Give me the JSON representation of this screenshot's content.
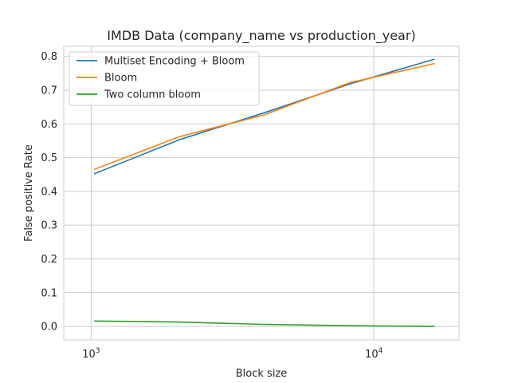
{
  "chart_data": {
    "type": "line",
    "title": "IMDB Data (company_name vs production_year)",
    "xlabel": "Block size",
    "ylabel": "False positive Rate",
    "xscale": "log",
    "xlim": [
      800,
      20000
    ],
    "ylim": [
      -0.04,
      0.83
    ],
    "x_ticks": [
      {
        "value": 1000,
        "base": "10",
        "exp": "3"
      },
      {
        "value": 10000,
        "base": "10",
        "exp": "4"
      }
    ],
    "y_ticks": [
      "0.0",
      "0.1",
      "0.2",
      "0.3",
      "0.4",
      "0.5",
      "0.6",
      "0.7",
      "0.8"
    ],
    "grid": true,
    "legend_position": "upper-left",
    "x": [
      1024,
      2048,
      4096,
      8192,
      16384
    ],
    "series": [
      {
        "name": "Multiset Encoding + Bloom",
        "color": "#1f77b4",
        "values": [
          0.452,
          0.553,
          0.633,
          0.718,
          0.792
        ]
      },
      {
        "name": "Bloom",
        "color": "#ff7f0e",
        "values": [
          0.465,
          0.562,
          0.627,
          0.722,
          0.779
        ]
      },
      {
        "name": "Two column bloom",
        "color": "#2ca02c",
        "values": [
          0.016,
          0.013,
          0.006,
          0.002,
          0.0
        ]
      }
    ]
  }
}
